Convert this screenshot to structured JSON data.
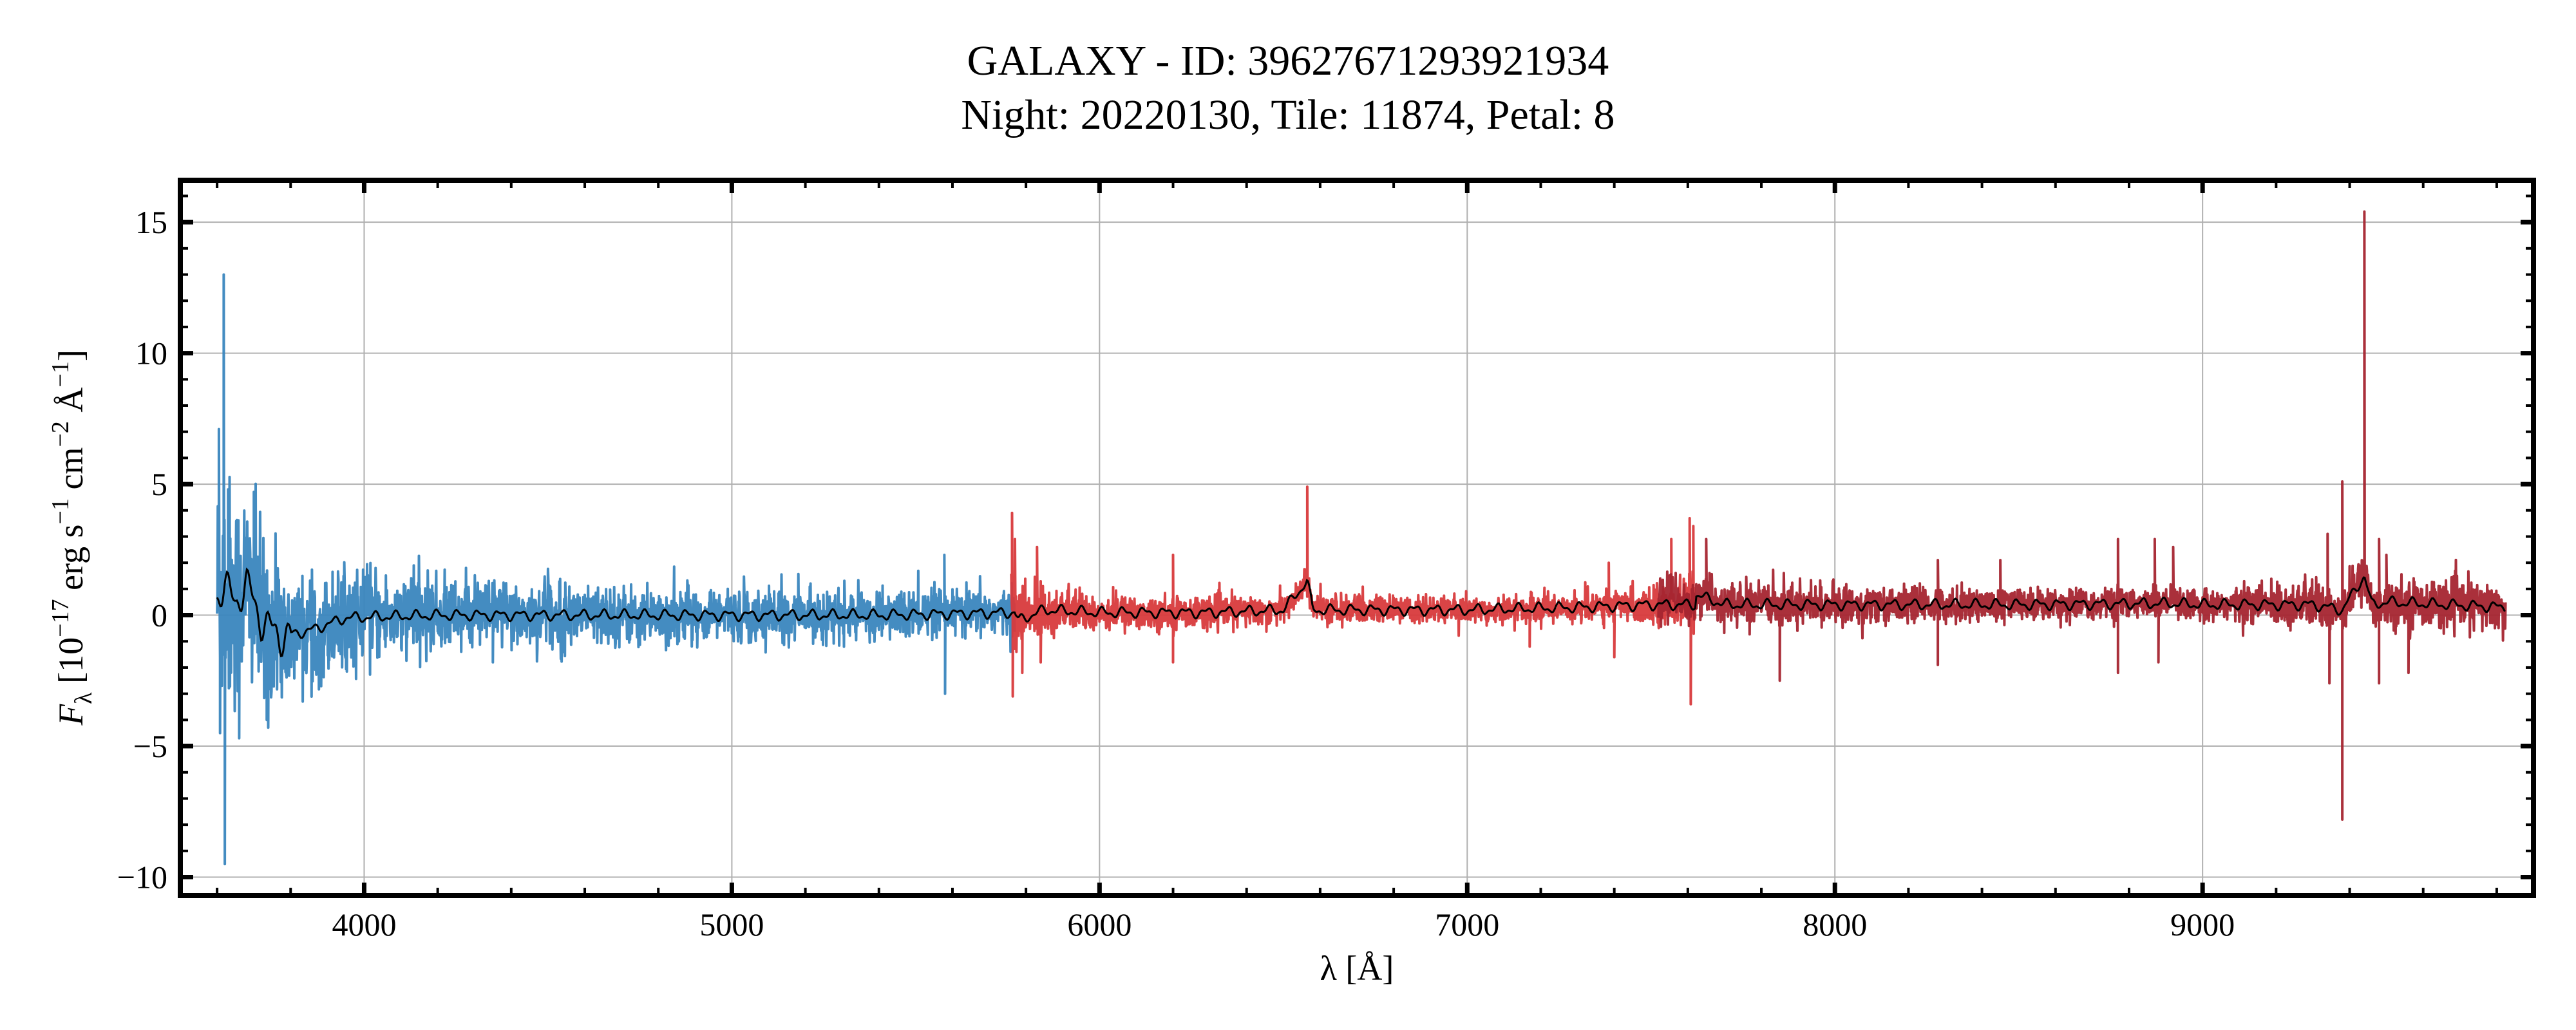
{
  "chart_data": {
    "type": "line",
    "title": "GALAXY - ID: 39627671293921934",
    "subtitle": "Night: 20220130, Tile: 11874, Petal: 8",
    "xlabel": "λ [Å]",
    "ylabel": "F_λ [10^-17 erg s^-1 cm^-2 Å^-1]",
    "ylabel_parts": {
      "main": "F",
      "sub": "λ",
      "pre": " [10",
      "e1": "−17",
      "erg": " erg s",
      "e2": "−1",
      "cm": " cm",
      "e3": "−2",
      "ang": " Å",
      "e4": "−1",
      "close": "]"
    },
    "xlim": [
      3500,
      9900
    ],
    "ylim": [
      -10.7,
      16.6
    ],
    "x_ticks": [
      4000,
      5000,
      6000,
      7000,
      8000,
      9000
    ],
    "x_tick_labels": [
      "4000",
      "5000",
      "6000",
      "7000",
      "8000",
      "9000"
    ],
    "y_ticks": [
      -10,
      -5,
      0,
      5,
      10,
      15
    ],
    "y_tick_labels": [
      "−10",
      "−5",
      "0",
      "5",
      "10",
      "15"
    ],
    "grid": true,
    "series": [
      {
        "arm": "b",
        "color": "#3a86be",
        "range": [
          3600,
          5770
        ],
        "continuum": [
          [
            3600,
            0.8
          ],
          [
            3620,
            1.1
          ],
          [
            3650,
            0.5
          ],
          [
            3680,
            1.2
          ],
          [
            3720,
            -0.2
          ],
          [
            3770,
            -0.8
          ],
          [
            3850,
            -0.6
          ],
          [
            3950,
            -0.1
          ],
          [
            4200,
            0.0
          ],
          [
            4600,
            0.0
          ],
          [
            5000,
            0.0
          ],
          [
            5400,
            0.0
          ],
          [
            5770,
            0.1
          ]
        ],
        "noise_sigma": [
          [
            3600,
            2.4
          ],
          [
            3700,
            1.8
          ],
          [
            3850,
            1.0
          ],
          [
            4200,
            0.7
          ],
          [
            4700,
            0.55
          ],
          [
            5300,
            0.45
          ],
          [
            5770,
            0.45
          ]
        ],
        "spikes": [
          [
            3605,
            7.1
          ],
          [
            3608,
            -4.5
          ],
          [
            3618,
            13.0
          ],
          [
            3621,
            -9.5
          ],
          [
            3630,
            4.8
          ],
          [
            3660,
            -4.7
          ],
          [
            3700,
            4.7
          ],
          [
            3735,
            -4.0
          ],
          [
            4350,
            -1.8
          ],
          [
            5578,
            2.3
          ],
          [
            5580,
            -3.0
          ]
        ]
      },
      {
        "arm": "r",
        "color": "#d83a3c",
        "range": [
          5760,
          7620
        ],
        "continuum": [
          [
            5760,
            0.3
          ],
          [
            5780,
            -0.2
          ],
          [
            5850,
            0.2
          ],
          [
            6000,
            0.1
          ],
          [
            6300,
            0.1
          ],
          [
            6500,
            0.2
          ],
          [
            6565,
            1.3
          ],
          [
            6580,
            0.2
          ],
          [
            7000,
            0.2
          ],
          [
            7300,
            0.3
          ],
          [
            7500,
            0.4
          ],
          [
            7620,
            0.4
          ]
        ],
        "noise_sigma": [
          [
            5760,
            0.7
          ],
          [
            5900,
            0.4
          ],
          [
            6200,
            0.3
          ],
          [
            7000,
            0.25
          ],
          [
            7400,
            0.3
          ],
          [
            7620,
            0.4
          ]
        ],
        "spikes": [
          [
            5762,
            3.9
          ],
          [
            5764,
            -3.1
          ],
          [
            5770,
            2.9
          ],
          [
            5790,
            -2.2
          ],
          [
            5830,
            2.6
          ],
          [
            5840,
            -1.8
          ],
          [
            6200,
            2.3
          ],
          [
            6200,
            -1.8
          ],
          [
            6565,
            4.9
          ],
          [
            7170,
            -1.2
          ],
          [
            7385,
            2.0
          ],
          [
            7400,
            -1.6
          ],
          [
            7555,
            2.9
          ],
          [
            7605,
            3.7
          ],
          [
            7608,
            -3.4
          ],
          [
            7615,
            3.4
          ]
        ]
      },
      {
        "arm": "z",
        "color": "#a52530",
        "range": [
          7520,
          9824
        ],
        "continuum": [
          [
            7520,
            0.3
          ],
          [
            7560,
            1.0
          ],
          [
            7600,
            0.2
          ],
          [
            7620,
            0.8
          ],
          [
            7700,
            0.4
          ],
          [
            8000,
            0.4
          ],
          [
            8500,
            0.4
          ],
          [
            8900,
            0.45
          ],
          [
            9000,
            0.4
          ],
          [
            9300,
            0.4
          ],
          [
            9380,
            0.2
          ],
          [
            9440,
            1.5
          ],
          [
            9460,
            0.4
          ],
          [
            9500,
            0.5
          ],
          [
            9824,
            0.3
          ]
        ],
        "noise_sigma": [
          [
            7520,
            0.4
          ],
          [
            8000,
            0.35
          ],
          [
            8500,
            0.3
          ],
          [
            9000,
            0.3
          ],
          [
            9300,
            0.45
          ],
          [
            9500,
            0.45
          ],
          [
            9824,
            0.45
          ]
        ],
        "spikes": [
          [
            7650,
            2.9
          ],
          [
            7850,
            -2.5
          ],
          [
            8280,
            2.1
          ],
          [
            8280,
            -1.9
          ],
          [
            8450,
            2.1
          ],
          [
            8770,
            2.9
          ],
          [
            8770,
            -2.2
          ],
          [
            8870,
            2.9
          ],
          [
            8880,
            -1.8
          ],
          [
            8920,
            2.6
          ],
          [
            9340,
            3.1
          ],
          [
            9345,
            -2.6
          ],
          [
            9380,
            5.1
          ],
          [
            9380,
            -7.8
          ],
          [
            9440,
            15.4
          ],
          [
            9480,
            2.9
          ],
          [
            9480,
            -2.6
          ],
          [
            9500,
            2.3
          ],
          [
            9560,
            -2.2
          ]
        ]
      },
      {
        "arm": "model",
        "color": "#000000",
        "note_label": ""
      }
    ]
  }
}
